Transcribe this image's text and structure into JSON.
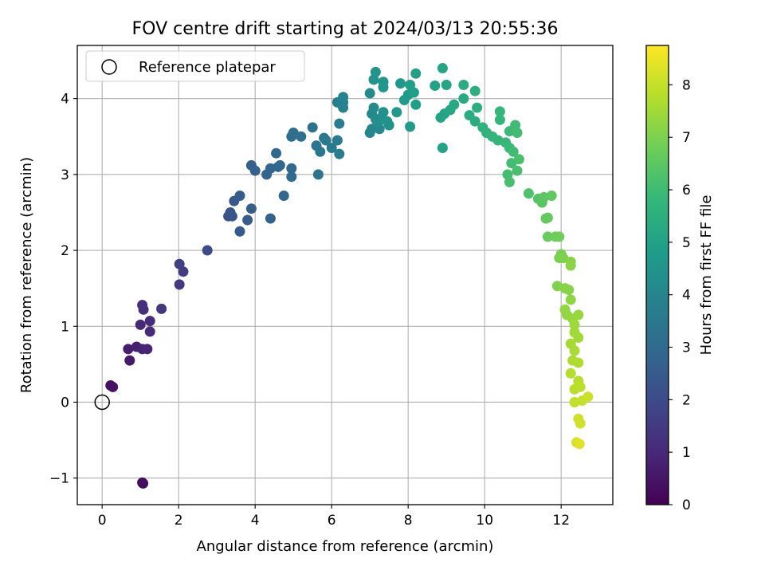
{
  "chart_data": {
    "type": "scatter",
    "title": "FOV centre drift starting at 2024/03/13 20:55:36",
    "xlabel": "Angular distance from reference (arcmin)",
    "ylabel": "Rotation from reference (arcmin)",
    "xlim": [
      -0.65,
      13.35
    ],
    "ylim": [
      -1.35,
      4.7
    ],
    "xticks": [
      0,
      2,
      4,
      6,
      8,
      10,
      12
    ],
    "yticks": [
      -1,
      0,
      1,
      2,
      3,
      4
    ],
    "xtick_labels": [
      "0",
      "2",
      "4",
      "6",
      "8",
      "10",
      "12"
    ],
    "ytick_labels": [
      "−1",
      "0",
      "1",
      "2",
      "3",
      "4"
    ],
    "grid": true,
    "legend": {
      "position": "top-left",
      "entries": [
        "Reference platepar"
      ]
    },
    "reference_point": {
      "x": 0,
      "y": 0,
      "marker": "hollow-circle",
      "label": "Reference platepar"
    },
    "colorbar": {
      "label": "Hours from first FF file",
      "range": [
        0,
        8.75
      ],
      "ticks": [
        0,
        1,
        2,
        3,
        4,
        5,
        6,
        7,
        8
      ],
      "colormap": "viridis",
      "colors": [
        "#440154",
        "#482878",
        "#3e4989",
        "#31688e",
        "#26828e",
        "#1f9e89",
        "#35b779",
        "#6ece58",
        "#b5de2b",
        "#fde725"
      ]
    },
    "series": [
      {
        "points": [
          [
            1.05,
            -1.06,
            0.3
          ],
          [
            1.07,
            -1.07,
            0.3
          ],
          [
            0.22,
            0.22,
            0.35
          ],
          [
            0.28,
            0.2,
            0.4
          ],
          [
            0.72,
            0.55,
            0.6
          ],
          [
            0.68,
            0.7,
            0.7
          ],
          [
            0.9,
            0.73,
            0.75
          ],
          [
            1.05,
            0.7,
            0.85
          ],
          [
            1.18,
            0.7,
            0.9
          ],
          [
            1.0,
            1.02,
            1.0
          ],
          [
            1.25,
            0.93,
            1.05
          ],
          [
            1.25,
            1.07,
            1.1
          ],
          [
            1.05,
            1.28,
            1.15
          ],
          [
            1.08,
            1.22,
            1.2
          ],
          [
            1.55,
            1.23,
            1.4
          ],
          [
            2.02,
            1.55,
            1.5
          ],
          [
            2.12,
            1.72,
            1.6
          ],
          [
            2.02,
            1.82,
            1.65
          ],
          [
            2.75,
            2.0,
            2.0
          ],
          [
            3.3,
            2.45,
            2.2
          ],
          [
            3.35,
            2.5,
            2.3
          ],
          [
            3.4,
            2.45,
            2.3
          ],
          [
            3.45,
            2.65,
            2.4
          ],
          [
            3.6,
            2.72,
            2.5
          ],
          [
            3.6,
            2.25,
            2.45
          ],
          [
            3.8,
            2.4,
            2.55
          ],
          [
            3.9,
            2.55,
            2.6
          ],
          [
            3.9,
            3.12,
            2.65
          ],
          [
            4.0,
            3.05,
            2.7
          ],
          [
            4.3,
            3.0,
            2.8
          ],
          [
            4.4,
            3.08,
            2.85
          ],
          [
            4.4,
            2.42,
            2.75
          ],
          [
            4.6,
            3.1,
            2.9
          ],
          [
            4.65,
            3.12,
            2.95
          ],
          [
            4.55,
            3.28,
            2.95
          ],
          [
            4.75,
            2.72,
            2.95
          ],
          [
            4.95,
            3.08,
            3.0
          ],
          [
            4.95,
            2.97,
            3.05
          ],
          [
            4.95,
            3.5,
            3.1
          ],
          [
            5.0,
            3.55,
            3.15
          ],
          [
            5.2,
            3.5,
            3.2
          ],
          [
            5.5,
            3.62,
            3.3
          ],
          [
            5.6,
            3.38,
            3.4
          ],
          [
            5.65,
            3.0,
            3.4
          ],
          [
            5.7,
            3.3,
            3.45
          ],
          [
            5.8,
            3.48,
            3.5
          ],
          [
            5.85,
            3.45,
            3.55
          ],
          [
            6.0,
            3.35,
            3.6
          ],
          [
            6.15,
            3.45,
            3.65
          ],
          [
            6.2,
            3.27,
            3.7
          ],
          [
            6.2,
            3.67,
            3.7
          ],
          [
            6.15,
            3.95,
            3.75
          ],
          [
            6.3,
            3.95,
            3.85
          ],
          [
            6.3,
            4.02,
            3.9
          ],
          [
            6.3,
            3.88,
            3.9
          ],
          [
            7.0,
            3.55,
            4.0
          ],
          [
            7.05,
            3.6,
            4.05
          ],
          [
            7.25,
            3.6,
            4.1
          ],
          [
            7.05,
            3.8,
            4.1
          ],
          [
            7.1,
            3.88,
            4.15
          ],
          [
            7.0,
            4.07,
            4.2
          ],
          [
            7.15,
            3.73,
            4.25
          ],
          [
            7.2,
            3.68,
            4.3
          ],
          [
            7.3,
            3.75,
            4.35
          ],
          [
            7.35,
            3.82,
            4.4
          ],
          [
            7.45,
            3.7,
            4.45
          ],
          [
            7.5,
            3.65,
            4.45
          ],
          [
            7.1,
            4.25,
            4.5
          ],
          [
            7.15,
            4.35,
            4.55
          ],
          [
            7.35,
            4.22,
            4.6
          ],
          [
            7.35,
            4.15,
            4.6
          ],
          [
            7.7,
            3.82,
            4.65
          ],
          [
            7.8,
            4.2,
            4.7
          ],
          [
            7.9,
            3.98,
            4.75
          ],
          [
            8.0,
            4.05,
            4.8
          ],
          [
            8.05,
            3.63,
            4.8
          ],
          [
            8.05,
            4.18,
            4.85
          ],
          [
            8.15,
            4.08,
            4.9
          ],
          [
            8.2,
            3.92,
            4.9
          ],
          [
            8.2,
            4.33,
            4.95
          ],
          [
            8.7,
            4.17,
            5.0
          ],
          [
            8.9,
            3.35,
            5.05
          ],
          [
            8.85,
            3.75,
            5.1
          ],
          [
            8.95,
            3.8,
            5.1
          ],
          [
            8.9,
            4.4,
            5.15
          ],
          [
            9.0,
            4.18,
            5.15
          ],
          [
            9.1,
            3.85,
            5.2
          ],
          [
            9.2,
            3.92,
            5.25
          ],
          [
            9.45,
            4.0,
            5.3
          ],
          [
            9.45,
            4.18,
            5.35
          ],
          [
            9.6,
            3.78,
            5.4
          ],
          [
            9.75,
            3.7,
            5.45
          ],
          [
            9.8,
            3.88,
            5.5
          ],
          [
            9.75,
            4.1,
            5.5
          ],
          [
            9.95,
            3.62,
            5.6
          ],
          [
            10.05,
            3.55,
            5.65
          ],
          [
            10.2,
            3.5,
            5.7
          ],
          [
            10.35,
            3.45,
            5.75
          ],
          [
            10.4,
            3.72,
            5.8
          ],
          [
            10.4,
            3.83,
            5.8
          ],
          [
            10.55,
            3.42,
            5.85
          ],
          [
            10.65,
            3.35,
            5.9
          ],
          [
            10.65,
            3.57,
            5.95
          ],
          [
            10.75,
            3.3,
            6.0
          ],
          [
            10.8,
            3.65,
            6.0
          ],
          [
            10.85,
            3.55,
            6.05
          ],
          [
            10.7,
            3.15,
            6.05
          ],
          [
            10.6,
            3.0,
            6.1
          ],
          [
            10.65,
            2.9,
            6.15
          ],
          [
            10.85,
            3.05,
            6.15
          ],
          [
            10.9,
            3.2,
            6.2
          ],
          [
            11.15,
            2.75,
            6.3
          ],
          [
            11.4,
            2.68,
            6.4
          ],
          [
            11.5,
            2.63,
            6.45
          ],
          [
            11.55,
            2.7,
            6.5
          ],
          [
            11.75,
            2.72,
            6.55
          ],
          [
            11.6,
            2.42,
            6.6
          ],
          [
            11.65,
            2.43,
            6.65
          ],
          [
            11.65,
            2.18,
            6.7
          ],
          [
            11.85,
            2.18,
            6.75
          ],
          [
            11.95,
            2.18,
            6.8
          ],
          [
            12.0,
            1.95,
            6.9
          ],
          [
            11.95,
            1.9,
            6.95
          ],
          [
            12.05,
            1.9,
            7.0
          ],
          [
            11.9,
            1.53,
            7.05
          ],
          [
            12.1,
            1.5,
            7.1
          ],
          [
            12.2,
            1.48,
            7.15
          ],
          [
            12.25,
            1.85,
            7.15
          ],
          [
            12.25,
            1.8,
            7.2
          ],
          [
            12.25,
            1.35,
            7.25
          ],
          [
            12.1,
            1.22,
            7.3
          ],
          [
            12.15,
            1.15,
            7.3
          ],
          [
            12.3,
            1.1,
            7.35
          ],
          [
            12.45,
            1.15,
            7.4
          ],
          [
            12.35,
            1.02,
            7.45
          ],
          [
            12.35,
            0.92,
            7.5
          ],
          [
            12.45,
            0.85,
            7.5
          ],
          [
            12.25,
            0.77,
            7.55
          ],
          [
            12.35,
            0.68,
            7.6
          ],
          [
            12.3,
            0.55,
            7.65
          ],
          [
            12.45,
            0.52,
            7.7
          ],
          [
            12.25,
            0.38,
            7.75
          ],
          [
            12.45,
            0.28,
            7.8
          ],
          [
            12.35,
            0.17,
            7.85
          ],
          [
            12.5,
            0.2,
            7.9
          ],
          [
            12.35,
            0.0,
            7.95
          ],
          [
            12.55,
            0.02,
            8.0
          ],
          [
            12.7,
            0.07,
            8.05
          ],
          [
            12.45,
            -0.22,
            8.1
          ],
          [
            12.5,
            -0.28,
            8.15
          ],
          [
            12.4,
            -0.53,
            8.25
          ],
          [
            12.48,
            -0.55,
            8.35
          ]
        ]
      }
    ]
  }
}
